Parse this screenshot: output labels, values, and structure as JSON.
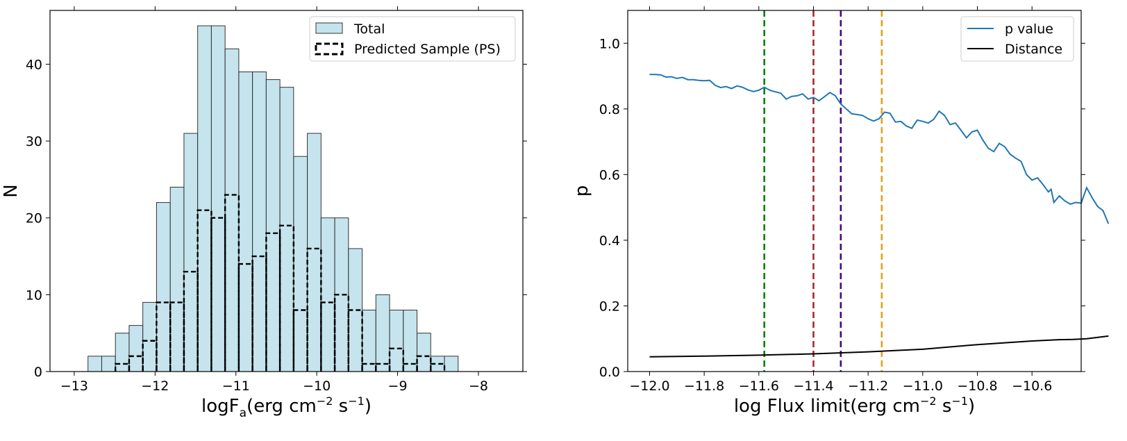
{
  "chart_data": [
    {
      "type": "bar",
      "title": "",
      "xlabel": {
        "main": "logF",
        "sub": "a",
        "rest1": "(erg cm",
        "sup1": "−2",
        "rest2": " s",
        "sup2": "−1",
        "rest3": ")"
      },
      "ylabel": "N",
      "xlim": [
        -13.3,
        -7.45
      ],
      "ylim": [
        0,
        47
      ],
      "xticks": [
        -13,
        -12,
        -11,
        -10,
        -9,
        -8
      ],
      "xtick_labels": [
        "−13",
        "−12",
        "−11",
        "−10",
        "−9",
        "−8"
      ],
      "yticks": [
        0,
        10,
        20,
        30,
        40
      ],
      "ytick_labels": [
        "0",
        "10",
        "20",
        "30",
        "40"
      ],
      "bin_start": -12.83,
      "bin_width": 0.1696,
      "series": [
        {
          "name": "Total",
          "style": "filled",
          "color": "#add8e6",
          "values": [
            2,
            2,
            5,
            6,
            9,
            22,
            24,
            31,
            45,
            45,
            42,
            39,
            39,
            38,
            37,
            28,
            31,
            20,
            20,
            16,
            8,
            10,
            8,
            8,
            5,
            2,
            2
          ]
        },
        {
          "name": "Predicted Sample (PS)",
          "style": "dashed-step",
          "color": "#000000",
          "values": [
            0,
            0,
            1,
            2,
            4,
            9,
            9,
            13,
            21,
            20,
            23,
            14,
            15,
            18,
            19,
            8,
            16,
            9,
            10,
            8,
            1,
            1,
            3,
            1,
            2,
            1,
            0
          ]
        }
      ],
      "legend": {
        "position": "top-right",
        "entries": [
          "Total",
          "Predicted Sample (PS)"
        ]
      }
    },
    {
      "type": "line",
      "title": "",
      "xlabel": {
        "main": "log Flux limit(erg cm",
        "sup1": "−2",
        "rest2": " s",
        "sup2": "−1",
        "rest3": ")"
      },
      "ylabel": "p",
      "xlim": [
        -12.08,
        -10.42
      ],
      "ylim": [
        0,
        1.1
      ],
      "xticks": [
        -12.0,
        -11.8,
        -11.6,
        -11.4,
        -11.2,
        -11.0,
        -10.8,
        -10.6
      ],
      "xtick_labels": [
        "−12.0",
        "−11.8",
        "−11.6",
        "−11.4",
        "−11.2",
        "−11.0",
        "−10.8",
        "−10.6"
      ],
      "yticks": [
        0.0,
        0.2,
        0.4,
        0.6,
        0.8,
        1.0
      ],
      "ytick_labels": [
        "0.0",
        "0.2",
        "0.4",
        "0.6",
        "0.8",
        "1.0"
      ],
      "vlines": [
        {
          "x": -11.58,
          "color": "#008000"
        },
        {
          "x": -11.4,
          "color": "#a52a2a"
        },
        {
          "x": -11.3,
          "color": "#4b0082"
        },
        {
          "x": -11.15,
          "color": "#e6a11a"
        }
      ],
      "series": [
        {
          "name": "p value",
          "color": "#1f77b4",
          "points": [
            [
              -12.0,
              0.905
            ],
            [
              -11.98,
              0.905
            ],
            [
              -11.96,
              0.904
            ],
            [
              -11.94,
              0.897
            ],
            [
              -11.92,
              0.898
            ],
            [
              -11.9,
              0.893
            ],
            [
              -11.88,
              0.896
            ],
            [
              -11.86,
              0.889
            ],
            [
              -11.84,
              0.889
            ],
            [
              -11.82,
              0.887
            ],
            [
              -11.8,
              0.886
            ],
            [
              -11.78,
              0.887
            ],
            [
              -11.76,
              0.872
            ],
            [
              -11.74,
              0.865
            ],
            [
              -11.72,
              0.868
            ],
            [
              -11.7,
              0.862
            ],
            [
              -11.68,
              0.87
            ],
            [
              -11.66,
              0.866
            ],
            [
              -11.64,
              0.858
            ],
            [
              -11.62,
              0.853
            ],
            [
              -11.6,
              0.857
            ],
            [
              -11.58,
              0.866
            ],
            [
              -11.56,
              0.857
            ],
            [
              -11.54,
              0.852
            ],
            [
              -11.52,
              0.848
            ],
            [
              -11.5,
              0.83
            ],
            [
              -11.48,
              0.838
            ],
            [
              -11.46,
              0.84
            ],
            [
              -11.44,
              0.846
            ],
            [
              -11.42,
              0.83
            ],
            [
              -11.4,
              0.835
            ],
            [
              -11.38,
              0.825
            ],
            [
              -11.36,
              0.837
            ],
            [
              -11.34,
              0.85
            ],
            [
              -11.32,
              0.84
            ],
            [
              -11.3,
              0.815
            ],
            [
              -11.28,
              0.8
            ],
            [
              -11.26,
              0.785
            ],
            [
              -11.24,
              0.783
            ],
            [
              -11.22,
              0.78
            ],
            [
              -11.2,
              0.77
            ],
            [
              -11.18,
              0.763
            ],
            [
              -11.16,
              0.77
            ],
            [
              -11.14,
              0.79
            ],
            [
              -11.12,
              0.787
            ],
            [
              -11.1,
              0.76
            ],
            [
              -11.08,
              0.762
            ],
            [
              -11.06,
              0.748
            ],
            [
              -11.04,
              0.741
            ],
            [
              -11.02,
              0.766
            ],
            [
              -11.0,
              0.762
            ],
            [
              -10.98,
              0.757
            ],
            [
              -10.96,
              0.768
            ],
            [
              -10.94,
              0.793
            ],
            [
              -10.92,
              0.78
            ],
            [
              -10.9,
              0.752
            ],
            [
              -10.88,
              0.757
            ],
            [
              -10.86,
              0.735
            ],
            [
              -10.84,
              0.712
            ],
            [
              -10.82,
              0.73
            ],
            [
              -10.8,
              0.735
            ],
            [
              -10.78,
              0.705
            ],
            [
              -10.76,
              0.68
            ],
            [
              -10.74,
              0.67
            ],
            [
              -10.72,
              0.695
            ],
            [
              -10.7,
              0.685
            ],
            [
              -10.68,
              0.662
            ],
            [
              -10.66,
              0.65
            ],
            [
              -10.64,
              0.64
            ],
            [
              -10.62,
              0.6
            ],
            [
              -10.6,
              0.583
            ],
            [
              -10.58,
              0.59
            ],
            [
              -10.56,
              0.57
            ],
            [
              -10.54,
              0.547
            ],
            [
              -10.53,
              0.555
            ],
            [
              -10.52,
              0.515
            ],
            [
              -10.5,
              0.535
            ],
            [
              -10.48,
              0.52
            ],
            [
              -10.46,
              0.51
            ],
            [
              -10.44,
              0.515
            ],
            [
              -10.42,
              0.513
            ],
            [
              -10.4,
              0.56
            ],
            [
              -10.38,
              0.53
            ],
            [
              -10.36,
              0.503
            ],
            [
              -10.34,
              0.49
            ],
            [
              -10.32,
              0.45
            ]
          ]
        },
        {
          "name": "Distance",
          "color": "#000000",
          "points": [
            [
              -12.0,
              0.045
            ],
            [
              -11.8,
              0.047
            ],
            [
              -11.6,
              0.05
            ],
            [
              -11.4,
              0.054
            ],
            [
              -11.2,
              0.06
            ],
            [
              -11.0,
              0.068
            ],
            [
              -10.8,
              0.082
            ],
            [
              -10.6,
              0.093
            ],
            [
              -10.5,
              0.097
            ],
            [
              -10.45,
              0.098
            ],
            [
              -10.4,
              0.1
            ],
            [
              -10.32,
              0.108
            ]
          ]
        }
      ],
      "legend": {
        "position": "top-right",
        "entries": [
          "p value",
          "Distance"
        ]
      }
    }
  ]
}
